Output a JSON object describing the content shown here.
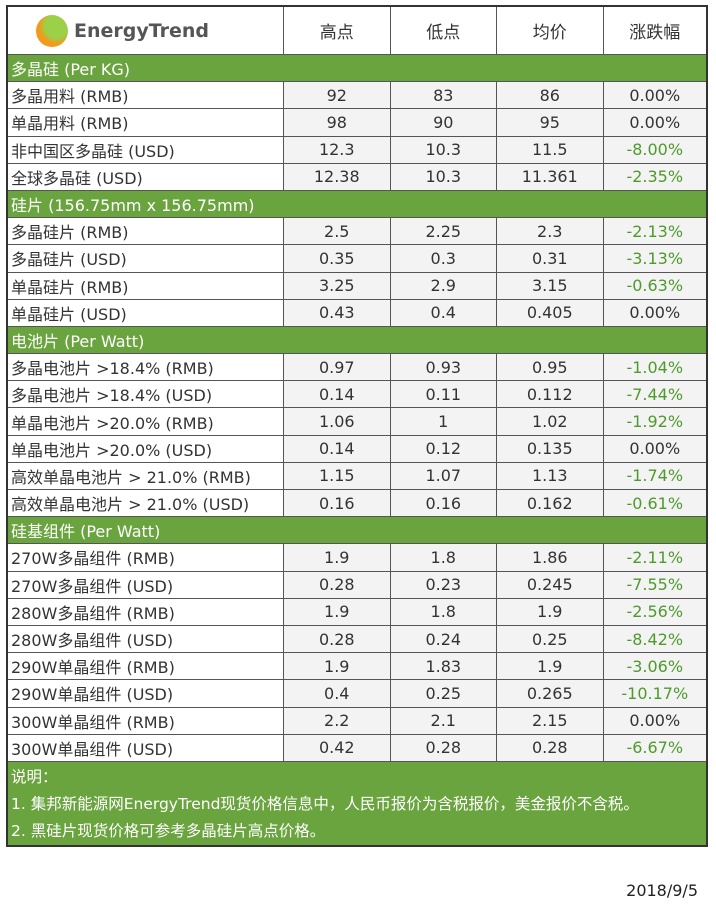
{
  "header": {
    "logo_text": "EnergyTrend",
    "columns": [
      "高点",
      "低点",
      "均价",
      "涨跌幅"
    ]
  },
  "colors": {
    "section_bg": "#6aa43e",
    "negative": "#4f9a2c"
  },
  "sections": [
    {
      "title": "多晶硅 (Per KG)",
      "rows": [
        [
          "多晶用料 (RMB)",
          "92",
          "83",
          "86",
          "0.00%"
        ],
        [
          "单晶用料 (RMB)",
          "98",
          "90",
          "95",
          "0.00%"
        ],
        [
          "非中国区多晶硅 (USD)",
          "12.3",
          "10.3",
          "11.5",
          "-8.00%"
        ],
        [
          "全球多晶硅 (USD)",
          "12.38",
          "10.3",
          "11.361",
          "-2.35%"
        ]
      ]
    },
    {
      "title": "硅片 (156.75mm x 156.75mm)",
      "rows": [
        [
          "多晶硅片 (RMB)",
          "2.5",
          "2.25",
          "2.3",
          "-2.13%"
        ],
        [
          "多晶硅片 (USD)",
          "0.35",
          "0.3",
          "0.31",
          "-3.13%"
        ],
        [
          "单晶硅片 (RMB)",
          "3.25",
          "2.9",
          "3.15",
          "-0.63%"
        ],
        [
          "单晶硅片 (USD)",
          "0.43",
          "0.4",
          "0.405",
          "0.00%"
        ]
      ]
    },
    {
      "title": "电池片 (Per Watt)",
      "rows": [
        [
          "多晶电池片 >18.4% (RMB)",
          "0.97",
          "0.93",
          "0.95",
          "-1.04%"
        ],
        [
          "多晶电池片 >18.4% (USD)",
          "0.14",
          "0.11",
          "0.112",
          "-7.44%"
        ],
        [
          "单晶电池片 >20.0% (RMB)",
          "1.06",
          "1",
          "1.02",
          "-1.92%"
        ],
        [
          "单晶电池片 >20.0% (USD)",
          "0.14",
          "0.12",
          "0.135",
          "0.00%"
        ],
        [
          "高效单晶电池片 > 21.0% (RMB)",
          "1.15",
          "1.07",
          "1.13",
          "-1.74%"
        ],
        [
          "高效单晶电池片 > 21.0% (USD)",
          "0.16",
          "0.16",
          "0.162",
          "-0.61%"
        ]
      ]
    },
    {
      "title": "硅基组件 (Per Watt)",
      "rows": [
        [
          "270W多晶组件 (RMB)",
          "1.9",
          "1.8",
          "1.86",
          "-2.11%"
        ],
        [
          "270W多晶组件 (USD)",
          "0.28",
          "0.23",
          "0.245",
          "-7.55%"
        ],
        [
          "280W多晶组件 (RMB)",
          "1.9",
          "1.8",
          "1.9",
          "-2.56%"
        ],
        [
          "280W多晶组件 (USD)",
          "0.28",
          "0.24",
          "0.25",
          "-8.42%"
        ],
        [
          "290W单晶组件 (RMB)",
          "1.9",
          "1.83",
          "1.9",
          "-3.06%"
        ],
        [
          "290W单晶组件 (USD)",
          "0.4",
          "0.25",
          "0.265",
          "-10.17%"
        ],
        [
          "300W单晶组件 (RMB)",
          "2.2",
          "2.1",
          "2.15",
          "0.00%"
        ],
        [
          "300W单晶组件 (USD)",
          "0.42",
          "0.28",
          "0.28",
          "-6.67%"
        ]
      ]
    }
  ],
  "notes": {
    "title": "说明：",
    "items": [
      "1. 集邦新能源网EnergyTrend现货价格信息中，人民币报价为含税报价，美金报价不含税。",
      "2. 黑硅片现货价格可参考多晶硅片高点价格。"
    ]
  },
  "date": "2018/9/5"
}
